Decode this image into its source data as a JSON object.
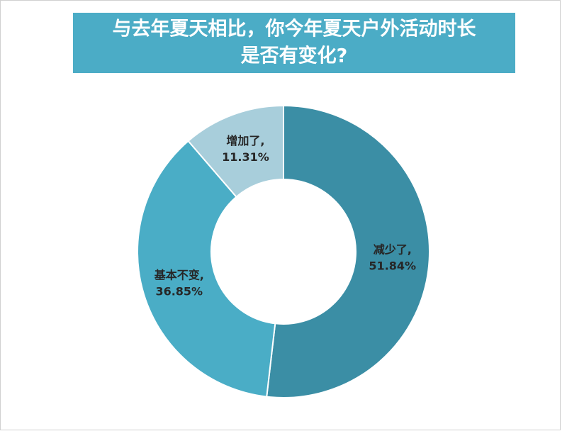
{
  "chart_data": {
    "type": "donut",
    "title": [
      "与去年夏天相比，你今年夏天户外活动时长",
      "是否有变化?"
    ],
    "categories": [
      "减少了,",
      "基本不变,",
      "增加了,"
    ],
    "values": [
      51.84,
      36.85,
      11.31
    ],
    "value_labels": [
      "51.84%",
      "36.85%",
      "11.31%"
    ],
    "colors": [
      "#3b8ea5",
      "#4aadc6",
      "#a8cedb"
    ]
  }
}
